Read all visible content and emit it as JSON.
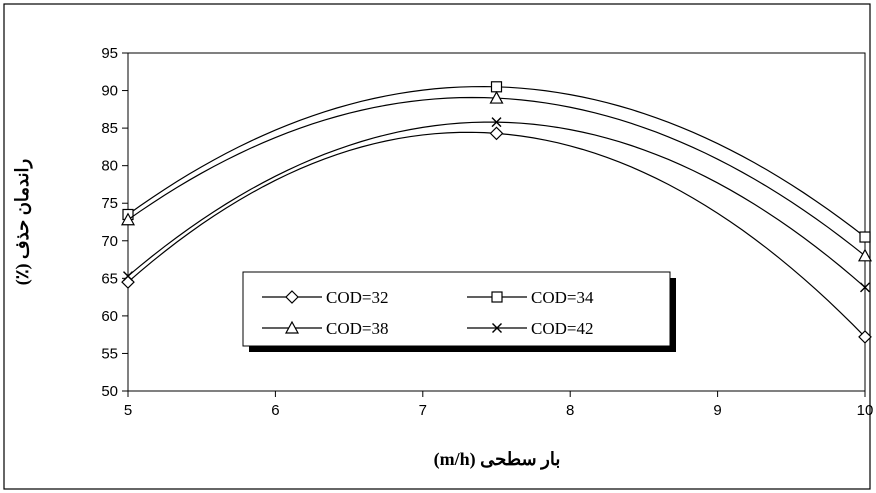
{
  "chart_data": {
    "type": "line",
    "title": "",
    "xlabel": "بار سطحی (m/h)",
    "ylabel": "راندمان حذف (٪)",
    "xlim": [
      5,
      10
    ],
    "ylim": [
      50,
      95
    ],
    "xticks": [
      "5",
      "6",
      "7",
      "8",
      "9",
      "10"
    ],
    "yticks": [
      "50",
      "55",
      "60",
      "65",
      "70",
      "75",
      "80",
      "85",
      "90",
      "95"
    ],
    "grid": false,
    "legend_position": "center-bottom",
    "x": [
      5,
      7.5,
      10
    ],
    "series": [
      {
        "name": "COD=32",
        "marker": "diamond",
        "values": [
          64.5,
          84.3,
          57.2
        ]
      },
      {
        "name": "COD=34",
        "marker": "square",
        "values": [
          73.5,
          90.5,
          70.5
        ]
      },
      {
        "name": "COD=38",
        "marker": "triangle",
        "values": [
          72.8,
          89.0,
          68.0
        ]
      },
      {
        "name": "COD=42",
        "marker": "x",
        "values": [
          65.3,
          85.8,
          63.8
        ]
      }
    ]
  }
}
